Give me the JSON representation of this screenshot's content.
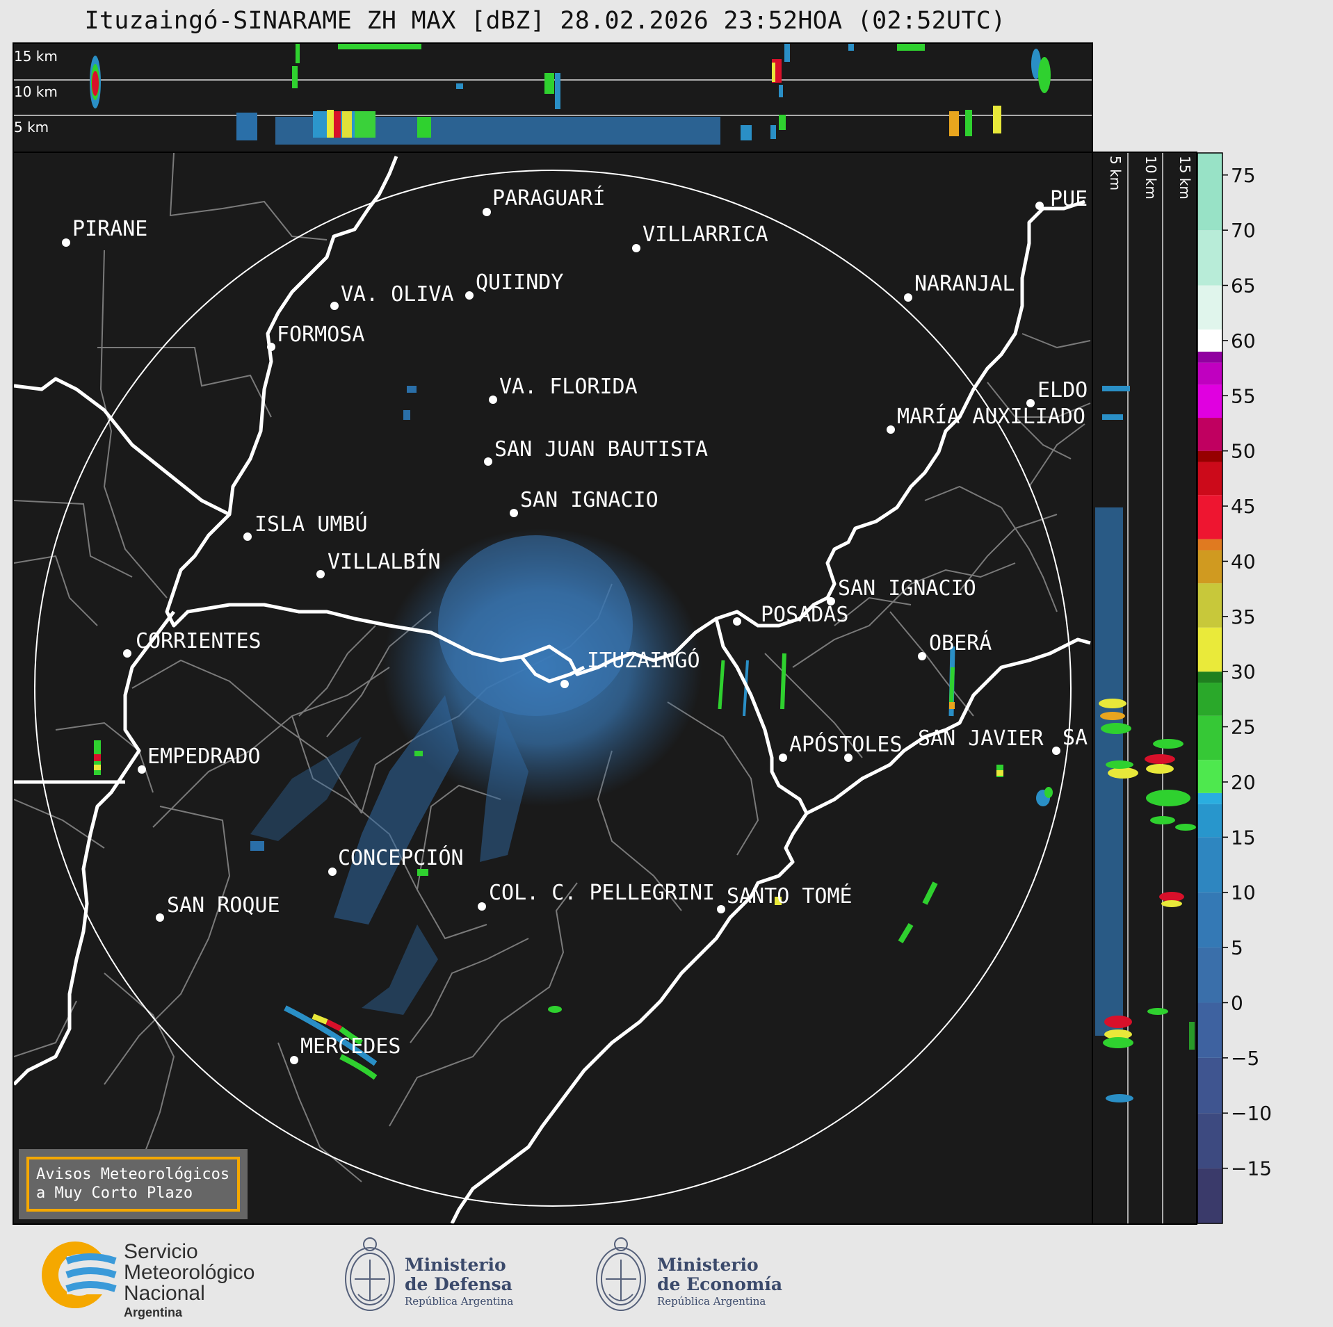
{
  "title": "Ituzaingó-SINARAME ZH MAX [dBZ] 28.02.2026 23:52HOA (02:52UTC)",
  "top_panel": {
    "height_labels": [
      "15 km",
      "10 km",
      "5 km"
    ]
  },
  "side_panel": {
    "height_labels": [
      "5 km",
      "10 km",
      "15 km"
    ]
  },
  "colorbar": {
    "ticks": [
      "75",
      "70",
      "65",
      "60",
      "55",
      "50",
      "45",
      "40",
      "35",
      "30",
      "25",
      "20",
      "15",
      "10",
      "5",
      "0",
      "−5",
      "−10",
      "−15"
    ],
    "colors": {
      "low": "#3c3c70",
      "blue": "#2a8fc6",
      "green": "#2fd12f",
      "yellow": "#e8e83a",
      "orange": "#e08a1e",
      "red": "#d8102a",
      "magenta": "#e000e0",
      "white": "#ffffff",
      "mint": "#7fdcb8"
    }
  },
  "cities": [
    "PARAGUARÍ",
    "PIRANE",
    "VILLARRICA",
    "QUIINDY",
    "VA. OLIVA",
    "NARANJAL",
    "FORMOSA",
    "PUE",
    "VA. FLORIDA",
    "ELDO",
    "MARÍA AUXILIADO",
    "SAN JUAN BAUTISTA",
    "SAN IGNACIO",
    "ISLA UMBÚ",
    "VILLALBÍN",
    "SAN IGNACIO",
    "POSADAS",
    "CORRIENTES",
    "ITUZAINGÓ",
    "OBERÁ",
    "APÓSTOLES",
    "SAN JAVIER",
    "SA",
    "EMPEDRADO",
    "CONCEPCIÓN",
    "COL. C. PELLEGRINI",
    "SANTO TOMÉ",
    "SAN ROQUE",
    "MERCEDES"
  ],
  "avisos": {
    "line1": "Avisos Meteorológicos",
    "line2": "a Muy Corto Plazo"
  },
  "logos": {
    "smn": {
      "line1": "Servicio",
      "line2": "Meteorológico",
      "line3": "Nacional",
      "line4": "Argentina"
    },
    "defensa": {
      "line1": "Ministerio",
      "line2": "de Defensa",
      "line3": "República Argentina"
    },
    "economia": {
      "line1": "Ministerio",
      "line2": "de Economía",
      "line3": "República Argentina"
    }
  }
}
